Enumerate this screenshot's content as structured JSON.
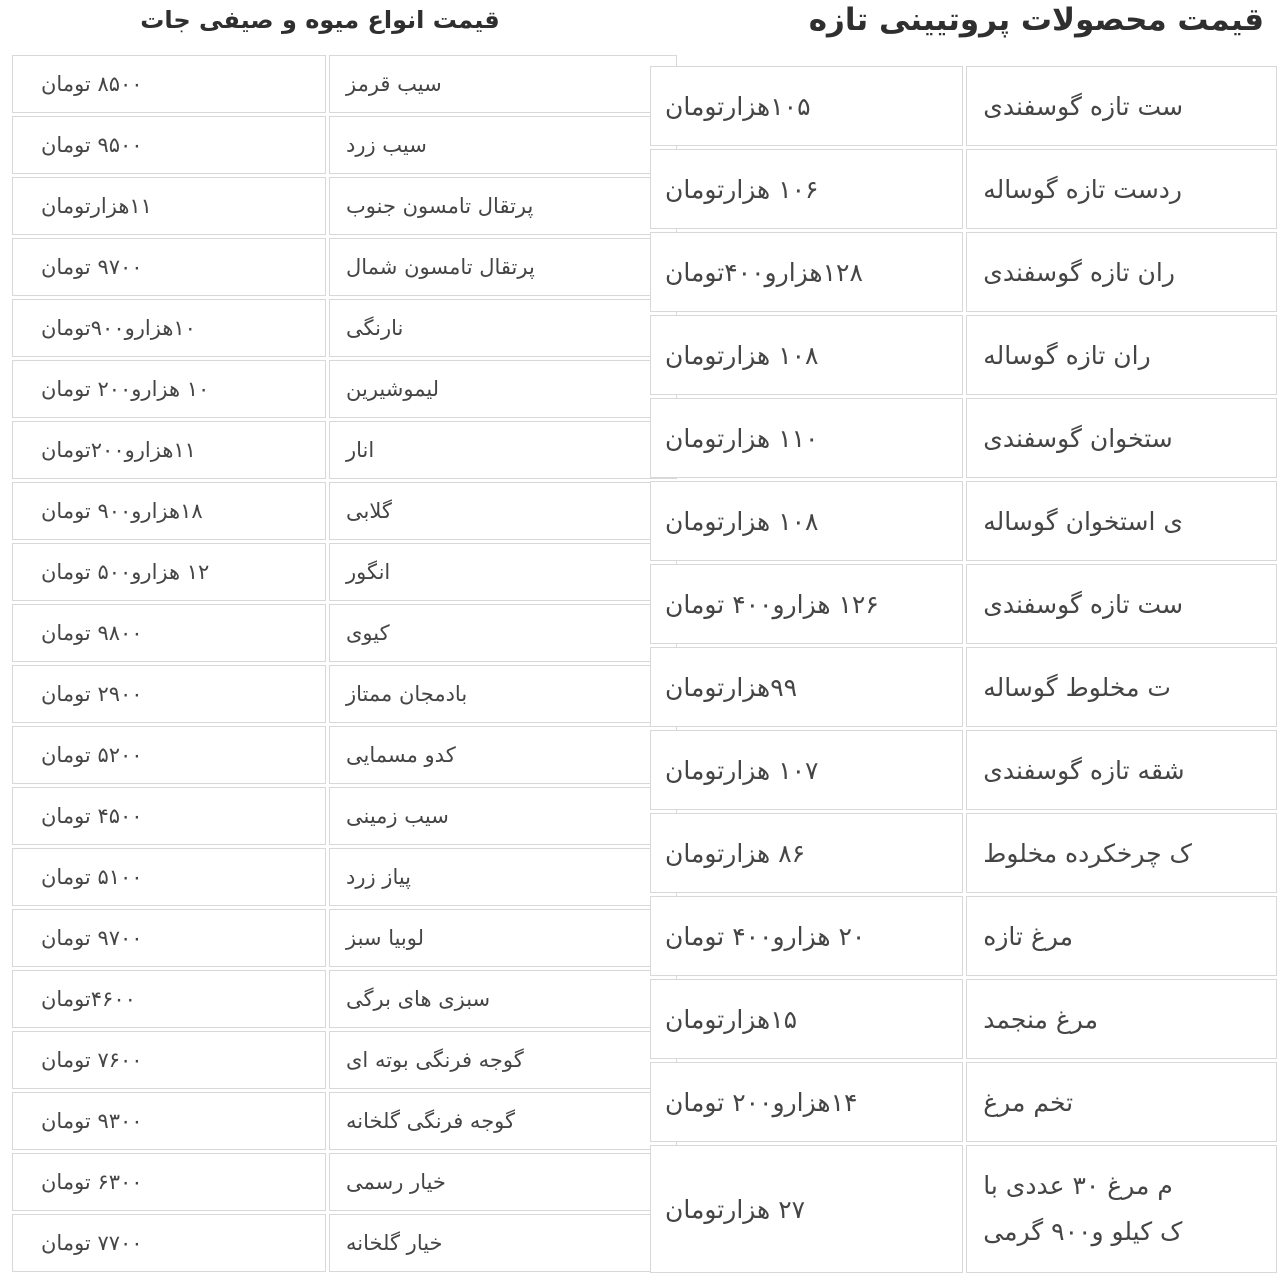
{
  "theme": {
    "background": "#ffffff",
    "border_color": "#d8d8d8",
    "text_color": "#454545",
    "title_color": "#2f2f2f",
    "currency_unit": "تومان"
  },
  "left_table": {
    "title": "قیمت انواع میوه و صیفی جات",
    "columns": [
      "price",
      "item"
    ],
    "rows": [
      {
        "price": "۸۵۰۰ تومان",
        "item": "سیب قرمز"
      },
      {
        "price": "۹۵۰۰ تومان",
        "item": "سیب زرد"
      },
      {
        "price": "۱۱هزارتومان",
        "item": "پرتقال تامسون جنوب"
      },
      {
        "price": "۹۷۰۰ تومان",
        "item": "پرتقال تامسون شمال"
      },
      {
        "price": "۱۰هزارو۹۰۰تومان",
        "item": "نارنگی"
      },
      {
        "price": "۱۰ هزارو۲۰۰ تومان",
        "item": "لیموشیرین"
      },
      {
        "price": "۱۱هزارو۲۰۰تومان",
        "item": "انار"
      },
      {
        "price": "۱۸هزارو۹۰۰ تومان",
        "item": "گلابی"
      },
      {
        "price": "۱۲ هزارو۵۰۰ تومان",
        "item": "انگور"
      },
      {
        "price": "۹۸۰۰ تومان",
        "item": "کیوی"
      },
      {
        "price": "۲۹۰۰ تومان",
        "item": "بادمجان ممتاز"
      },
      {
        "price": "۵۲۰۰ تومان",
        "item": "کدو مسمایی"
      },
      {
        "price": "۴۵۰۰ تومان",
        "item": "سیب زمینی"
      },
      {
        "price": "۵۱۰۰ تومان",
        "item": "پیاز زرد"
      },
      {
        "price": "۹۷۰۰ تومان",
        "item": "لوبیا سبز"
      },
      {
        "price": "۴۶۰۰تومان",
        "item": "سبزی های برگی"
      },
      {
        "price": "۷۶۰۰ تومان",
        "item": "گوجه فرنگی بوته ای"
      },
      {
        "price": "۹۳۰۰ تومان",
        "item": "گوجه فرنگی گلخانه"
      },
      {
        "price": "۶۳۰۰ تومان",
        "item": "خیار رسمی"
      },
      {
        "price": "۷۷۰۰ تومان",
        "item": "خیار گلخانه"
      }
    ]
  },
  "right_table": {
    "title": "قیمت محصولات پروتیینی تازه",
    "columns": [
      "price",
      "item"
    ],
    "rows": [
      {
        "price": "۱۰۵هزارتومان",
        "item": "ست تازه گوسفندی"
      },
      {
        "price": "۱۰۶ هزارتومان",
        "item": "ردست  تازه گوساله"
      },
      {
        "price": "۱۲۸هزارو۴۰۰تومان",
        "item": "ران تازه گوسفندی"
      },
      {
        "price": "۱۰۸ هزارتومان",
        "item": "ران تازه گوساله"
      },
      {
        "price": "۱۱۰ هزارتومان",
        "item": "ستخوان گوسفندی"
      },
      {
        "price": "۱۰۸ هزارتومان",
        "item": "ی استخوان گوساله"
      },
      {
        "price": "۱۲۶ هزارو۴۰۰ تومان",
        "item": "ست تازه گوسفندی"
      },
      {
        "price": "۹۹هزارتومان",
        "item": "ت مخلوط گوساله"
      },
      {
        "price": "۱۰۷ هزارتومان",
        "item": "شقه تازه گوسفندی"
      },
      {
        "price": "۸۶ هزارتومان",
        "item": "ک چرخکرده مخلوط"
      },
      {
        "price": "۲۰ هزارو۴۰۰ تومان",
        "item": "مرغ تازه"
      },
      {
        "price": "۱۵هزارتومان",
        "item": "مرغ منجمد"
      },
      {
        "price": "۱۴هزارو۲۰۰ تومان",
        "item": "تخم مرغ"
      },
      {
        "price": "۲۷ هزارتومان",
        "item": "م مرغ ۳۰ عددی با",
        "item2": "ک کیلو و۹۰۰ گرمی"
      }
    ]
  }
}
